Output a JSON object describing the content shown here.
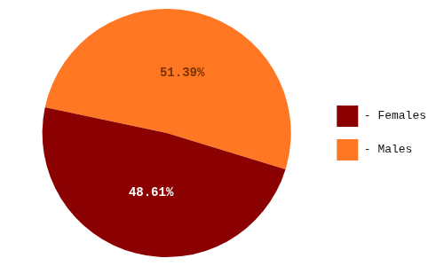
{
  "chart_data": {
    "type": "pie",
    "categories": [
      "- Males",
      "- Females"
    ],
    "values": [
      51.39,
      48.61
    ],
    "value_labels": [
      "51.39%",
      "48.61%"
    ],
    "colors": [
      "#FF7722",
      "#8B0000"
    ],
    "data_labels": true,
    "legend": "right"
  }
}
